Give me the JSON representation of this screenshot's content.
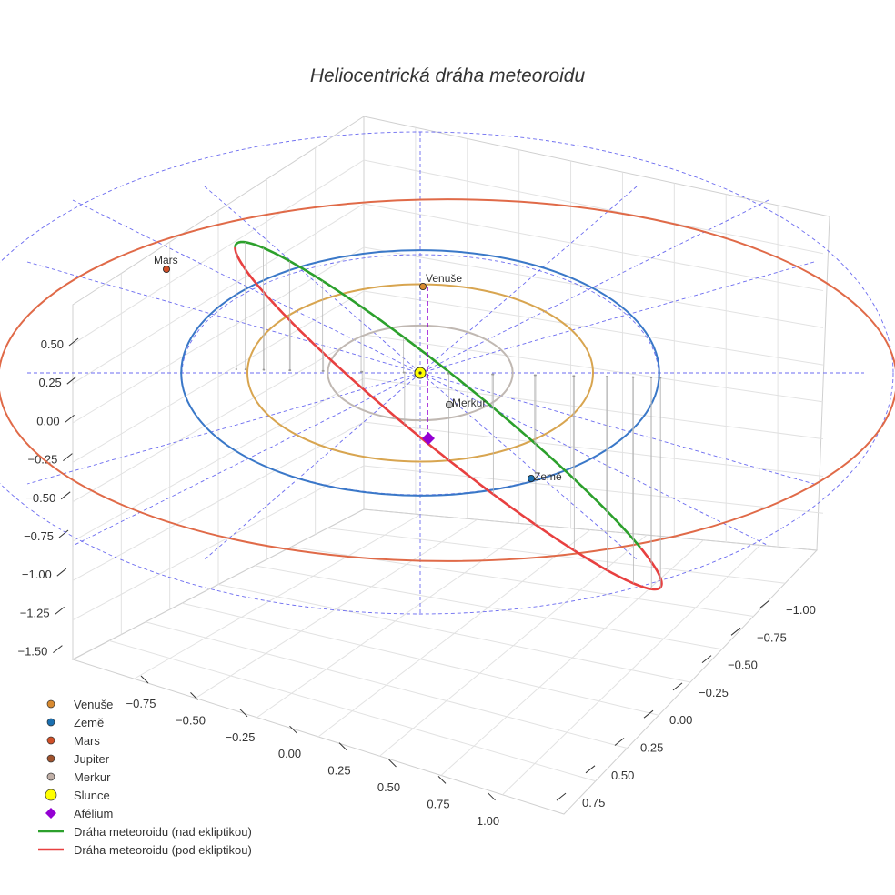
{
  "chart_data": {
    "type": "scatter3d",
    "title": "Heliocentrická dráha meteoroidu",
    "axes": {
      "x": {
        "ticks": [
          "−0.75",
          "−0.50",
          "−0.25",
          "0.00",
          "0.25",
          "0.50",
          "0.75",
          "1.00"
        ]
      },
      "y": {
        "ticks": [
          "−1.00",
          "−0.75",
          "−0.50",
          "−0.25",
          "0.00",
          "0.25",
          "0.50",
          "0.75"
        ]
      },
      "z": {
        "ticks": [
          "0.50",
          "0.25",
          "0.00",
          "−0.25",
          "−0.50",
          "−0.75",
          "−1.00",
          "−1.25",
          "−1.50"
        ]
      }
    },
    "orbits": [
      {
        "name": "Merkur",
        "a": 0.387,
        "color": "#c0b8b2"
      },
      {
        "name": "Venuše",
        "a": 0.723,
        "color": "#d8a550"
      },
      {
        "name": "Země",
        "a": 1.0,
        "color": "#3a78c8"
      },
      {
        "name": "Mars",
        "a": 1.524,
        "color": "#e06a48"
      }
    ],
    "meteoroid_orbit": {
      "q": 0.97,
      "Q": 1.25,
      "inclination_deg": 28,
      "aphelion_label": "Afélium"
    },
    "points": [
      {
        "name": "Slunce",
        "label": "",
        "color": "#ffff00",
        "x": 0,
        "y": 0,
        "z": 0
      },
      {
        "name": "Merkur",
        "label": "Merkur",
        "color": "#c0c0c0",
        "x": 0.05,
        "y": 0.12,
        "z": 0
      },
      {
        "name": "Venuše",
        "label": "Venuše",
        "color": "#d88a30",
        "x": 0.0,
        "y": -0.72,
        "z": 0
      },
      {
        "name": "Země",
        "label": "Země",
        "color": "#1a6fb0",
        "x": 0.6,
        "y": 0.64,
        "z": 0
      },
      {
        "name": "Mars",
        "label": "Mars",
        "color": "#d05028",
        "x": -1.3,
        "y": -0.9,
        "z": 0
      }
    ],
    "legend": [
      {
        "label": "Venuše",
        "kind": "dot",
        "color": "#d88a30"
      },
      {
        "label": "Země",
        "kind": "dot",
        "color": "#1a6fb0"
      },
      {
        "label": "Mars",
        "kind": "dot",
        "color": "#d05028"
      },
      {
        "label": "Jupiter",
        "kind": "dot",
        "color": "#a0522d"
      },
      {
        "label": "Merkur",
        "kind": "dot",
        "color": "#c0b0a8"
      },
      {
        "label": "Slunce",
        "kind": "big-dot",
        "color": "#ffff00"
      },
      {
        "label": "Afélium",
        "kind": "diamond",
        "color": "#9400d3"
      },
      {
        "label": "Dráha meteoroidu (nad ekliptikou)",
        "kind": "line",
        "color": "#2ca02c"
      },
      {
        "label": "Dráha meteoroidu (pod ekliptikou)",
        "kind": "line",
        "color": "#e84040"
      }
    ],
    "colors": {
      "ecliptic_grid": "#6b6bf0",
      "above": "#2ca02c",
      "below": "#e84040",
      "aphelion": "#9400d3"
    }
  }
}
